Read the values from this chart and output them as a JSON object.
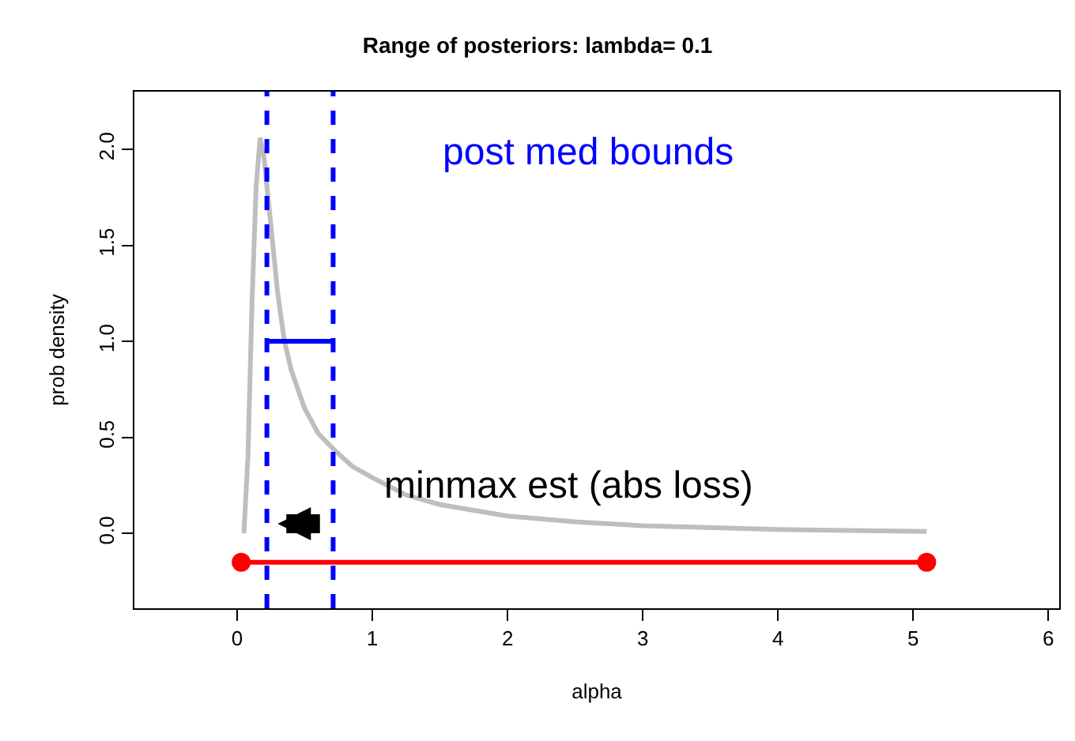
{
  "chart_data": {
    "type": "line",
    "title": "Range of posteriors: lambda= 0.1",
    "xlabel": "alpha",
    "ylabel": "prob density",
    "xlim": [
      -0.76,
      6.08
    ],
    "xticks": [
      0,
      1,
      2,
      3,
      4,
      5,
      6
    ],
    "ylim": [
      -0.39,
      2.3
    ],
    "yticks": [
      {
        "value": 0,
        "label": "0.0"
      },
      {
        "value": 0.5,
        "label": "0.5"
      },
      {
        "value": 1,
        "label": "1.0"
      },
      {
        "value": 1.5,
        "label": "1.5"
      },
      {
        "value": 2,
        "label": "2.0"
      }
    ],
    "series": [
      {
        "color": "#bebebe",
        "x": [
          0.05,
          0.08,
          0.11,
          0.14,
          0.17,
          0.2,
          0.25,
          0.3,
          0.35,
          0.4,
          0.5,
          0.6,
          0.71,
          0.85,
          1.0,
          1.25,
          1.5,
          2.0,
          2.5,
          3.0,
          4.0,
          5.1
        ],
        "values": [
          0.0,
          0.4,
          1.2,
          1.8,
          2.06,
          1.95,
          1.6,
          1.25,
          1.0,
          0.85,
          0.65,
          0.52,
          0.44,
          0.35,
          0.29,
          0.2,
          0.15,
          0.09,
          0.06,
          0.04,
          0.02,
          0.01
        ]
      },
      {
        "color": "#0000ff",
        "x": [
          0.22,
          0.71
        ],
        "values": [
          1.0,
          1.0
        ]
      },
      {
        "color": "#ff0000",
        "x": [
          0.03,
          5.1
        ],
        "values": [
          -0.15,
          -0.15
        ],
        "marker": "circle"
      }
    ],
    "ref_lines": [
      {
        "axis": "x",
        "value": 0.22,
        "color": "#0000ff",
        "line_style": "dashed"
      },
      {
        "axis": "x",
        "value": 0.71,
        "color": "#0000ff",
        "line_style": "dashed"
      }
    ],
    "annotations": [
      "post med bounds",
      "minmax est (abs loss)"
    ]
  }
}
